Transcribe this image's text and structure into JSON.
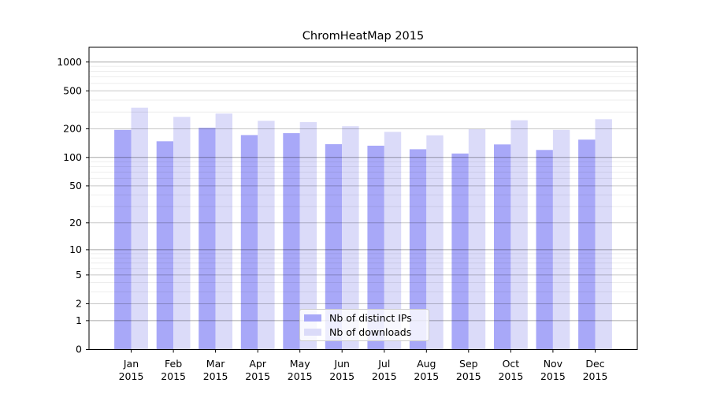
{
  "chart_data": {
    "type": "bar",
    "title": "ChromHeatMap 2015",
    "x_categories": [
      "Jan",
      "Feb",
      "Mar",
      "Apr",
      "May",
      "Jun",
      "Jul",
      "Aug",
      "Sep",
      "Oct",
      "Nov",
      "Dec"
    ],
    "x_year_label": "2015",
    "series": [
      {
        "name": "Nb of distinct IPs",
        "color": "#a8a8f8",
        "values": [
          195,
          148,
          205,
          172,
          180,
          138,
          133,
          122,
          110,
          137,
          120,
          154
        ]
      },
      {
        "name": "Nb of downloads",
        "color": "#dbdbf9",
        "values": [
          333,
          267,
          289,
          243,
          235,
          213,
          186,
          171,
          198,
          246,
          195,
          252
        ]
      }
    ],
    "y_scale": "log10(value+1)",
    "y_ticks": [
      0,
      1,
      2,
      5,
      10,
      20,
      50,
      100,
      200,
      500,
      1000
    ],
    "y_tick_labels": [
      "0",
      "1",
      "2",
      "5",
      "10",
      "20",
      "50",
      "100",
      "200",
      "500",
      "1000"
    ],
    "y_max": 1426,
    "grid": true,
    "legend_position": "lower center",
    "xlabel": "",
    "ylabel": ""
  },
  "colors": {
    "frame": "#000000",
    "grid_labeled": "rgba(0,0,0,0.22)",
    "grid_decade": "rgba(0,0,0,0.34)",
    "grid_minor": "rgba(0,0,0,0.07)",
    "text": "#000000",
    "legend_border": "#cccccc",
    "legend_bg": "rgba(255,255,255,0.8)"
  }
}
